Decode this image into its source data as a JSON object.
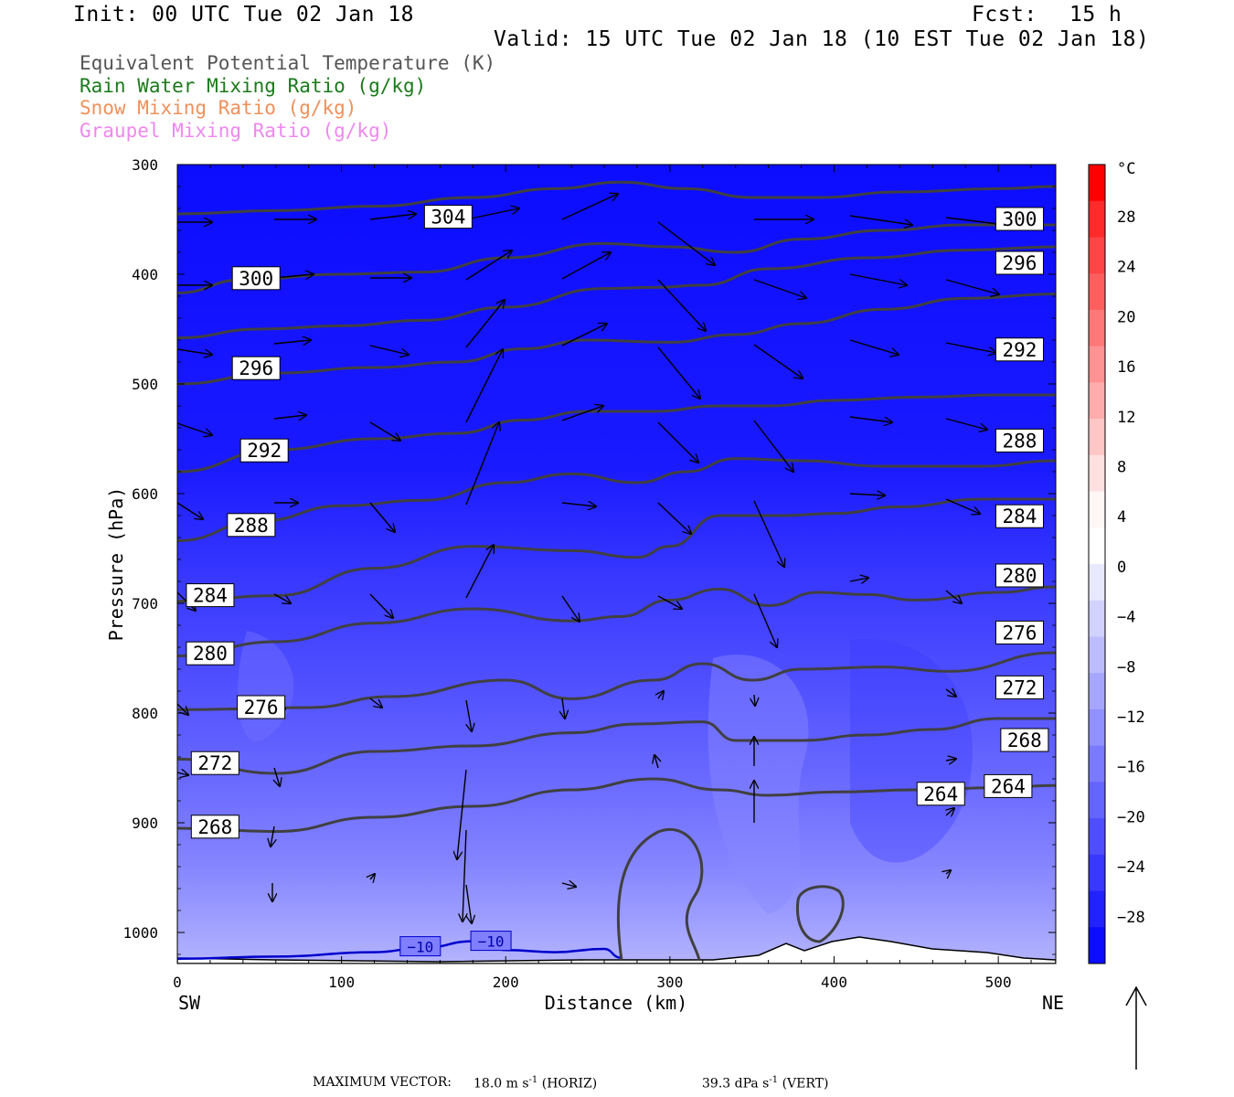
{
  "header": {
    "init": "Init: 00 UTC Tue 02 Jan 18",
    "fcst_label": "Fcst:",
    "fcst_value": "15 h",
    "valid": "Valid: 15 UTC Tue 02 Jan 18 (10 EST Tue 02 Jan 18)"
  },
  "legend": {
    "items": [
      {
        "label": "Equivalent Potential Temperature (K)",
        "color": "#555555"
      },
      {
        "label": "Rain Water Mixing Ratio (g/kg)",
        "color": "#1a7a1a"
      },
      {
        "label": "Snow Mixing Ratio (g/kg)",
        "color": "#f0905a"
      },
      {
        "label": "Graupel Mixing Ratio (g/kg)",
        "color": "#ee88ee"
      }
    ]
  },
  "footer": {
    "max_vector_label": "MAXIMUM VECTOR:",
    "horiz_value": "18.0",
    "horiz_unit": "m s",
    "horiz_tag": "(HORIZ)",
    "vert_value": "39.3",
    "vert_unit": "dPa s",
    "vert_tag": "(VERT)",
    "exponent": "-1"
  },
  "chart_data": {
    "type": "heatmap",
    "xlabel": "Distance (km)",
    "ylabel": "Pressure (hPa)",
    "xlim": [
      0,
      535
    ],
    "ylim": [
      1030,
      300
    ],
    "x_ticks": [
      0,
      100,
      200,
      300,
      400,
      500
    ],
    "y_ticks": [
      300,
      400,
      500,
      600,
      700,
      800,
      900,
      1000
    ],
    "x_end_labels": {
      "left": "SW",
      "right": "NE"
    },
    "colorbar": {
      "unit": "°C",
      "tick_labels": [
        28,
        24,
        20,
        16,
        12,
        8,
        4,
        0,
        -4,
        -8,
        -12,
        -16,
        -20,
        -24,
        -28
      ],
      "colors": [
        "#ff0000",
        "#ff2a2a",
        "#ff4444",
        "#ff5e5e",
        "#ff7878",
        "#ff9292",
        "#ffacac",
        "#ffc6c6",
        "#ffe0e0",
        "#fff6f6",
        "#ffffff",
        "#e8e8ff",
        "#d2d2ff",
        "#bcbcff",
        "#a6a6ff",
        "#9090ff",
        "#7a7aff",
        "#6464ff",
        "#4e4eff",
        "#3838ff",
        "#2222ff",
        "#0c0cff"
      ]
    },
    "theta_e_contours": [
      {
        "value": 304,
        "points": [
          [
            0,
            345
          ],
          [
            60,
            342
          ],
          [
            120,
            338
          ],
          [
            180,
            330
          ],
          [
            230,
            322
          ],
          [
            270,
            316
          ],
          [
            310,
            322
          ],
          [
            350,
            330
          ],
          [
            390,
            330
          ],
          [
            440,
            325
          ],
          [
            500,
            322
          ],
          [
            535,
            320
          ]
        ]
      },
      {
        "value": 300,
        "points": [
          [
            0,
            417
          ],
          [
            40,
            405
          ],
          [
            100,
            400
          ],
          [
            150,
            398
          ],
          [
            200,
            385
          ],
          [
            260,
            372
          ],
          [
            300,
            375
          ],
          [
            340,
            380
          ],
          [
            380,
            368
          ],
          [
            430,
            360
          ],
          [
            480,
            355
          ],
          [
            535,
            355
          ]
        ]
      },
      {
        "value": 296,
        "points": [
          [
            0,
            458
          ],
          [
            50,
            450
          ],
          [
            100,
            447
          ],
          [
            150,
            442
          ],
          [
            200,
            430
          ],
          [
            260,
            413
          ],
          [
            290,
            412
          ],
          [
            320,
            410
          ],
          [
            360,
            395
          ],
          [
            420,
            385
          ],
          [
            480,
            378
          ],
          [
            535,
            375
          ]
        ]
      },
      {
        "value": 292,
        "points": [
          [
            0,
            500
          ],
          [
            60,
            490
          ],
          [
            120,
            485
          ],
          [
            170,
            480
          ],
          [
            210,
            468
          ],
          [
            250,
            460
          ],
          [
            300,
            462
          ],
          [
            340,
            455
          ],
          [
            380,
            445
          ],
          [
            430,
            432
          ],
          [
            480,
            422
          ],
          [
            535,
            418
          ]
        ]
      },
      {
        "value": 288,
        "points": [
          [
            0,
            580
          ],
          [
            60,
            560
          ],
          [
            120,
            550
          ],
          [
            170,
            545
          ],
          [
            210,
            533
          ],
          [
            250,
            525
          ],
          [
            290,
            525
          ],
          [
            330,
            520
          ],
          [
            360,
            520
          ],
          [
            400,
            515
          ],
          [
            450,
            512
          ],
          [
            500,
            510
          ],
          [
            535,
            510
          ]
        ]
      },
      {
        "value": 284,
        "points": [
          [
            0,
            643
          ],
          [
            50,
            625
          ],
          [
            100,
            611
          ],
          [
            150,
            606
          ],
          [
            200,
            590
          ],
          [
            240,
            582
          ],
          [
            280,
            590
          ],
          [
            310,
            580
          ],
          [
            340,
            568
          ],
          [
            380,
            570
          ],
          [
            430,
            575
          ],
          [
            490,
            575
          ],
          [
            535,
            570
          ]
        ]
      },
      {
        "value": 280,
        "points": [
          [
            0,
            698
          ],
          [
            60,
            693
          ],
          [
            120,
            668
          ],
          [
            180,
            648
          ],
          [
            240,
            652
          ],
          [
            280,
            658
          ],
          [
            300,
            648
          ],
          [
            330,
            620
          ],
          [
            370,
            620
          ],
          [
            400,
            618
          ],
          [
            440,
            612
          ],
          [
            490,
            605
          ],
          [
            535,
            605
          ]
        ]
      },
      {
        "value": 276,
        "points": [
          [
            0,
            748
          ],
          [
            60,
            735
          ],
          [
            120,
            718
          ],
          [
            180,
            705
          ],
          [
            240,
            716
          ],
          [
            270,
            712
          ],
          [
            300,
            697
          ],
          [
            330,
            687
          ],
          [
            360,
            702
          ],
          [
            390,
            690
          ],
          [
            420,
            692
          ],
          [
            450,
            697
          ],
          [
            500,
            690
          ],
          [
            535,
            685
          ]
        ]
      },
      {
        "value": 272,
        "points": [
          [
            0,
            797
          ],
          [
            80,
            795
          ],
          [
            130,
            785
          ],
          [
            200,
            770
          ],
          [
            240,
            787
          ],
          [
            290,
            770
          ],
          [
            320,
            755
          ],
          [
            350,
            770
          ],
          [
            380,
            760
          ],
          [
            430,
            758
          ],
          [
            470,
            762
          ],
          [
            535,
            745
          ]
        ]
      },
      {
        "value": 268,
        "points": [
          [
            0,
            842
          ],
          [
            60,
            855
          ],
          [
            120,
            835
          ],
          [
            180,
            830
          ],
          [
            240,
            818
          ],
          [
            280,
            810
          ],
          [
            320,
            808
          ],
          [
            340,
            825
          ],
          [
            380,
            825
          ],
          [
            420,
            820
          ],
          [
            460,
            815
          ],
          [
            500,
            805
          ],
          [
            535,
            805
          ]
        ]
      },
      {
        "value": 264,
        "points": [
          [
            0,
            905
          ],
          [
            60,
            908
          ],
          [
            120,
            895
          ],
          [
            180,
            885
          ],
          [
            240,
            870
          ],
          [
            290,
            860
          ],
          [
            330,
            870
          ],
          [
            360,
            875
          ],
          [
            400,
            872
          ],
          [
            450,
            870
          ],
          [
            500,
            868
          ],
          [
            535,
            866
          ]
        ]
      }
    ],
    "contour_labels": [
      {
        "text": "304",
        "x": 165,
        "y": 348
      },
      {
        "text": "300",
        "x": 48,
        "y": 404
      },
      {
        "text": "296",
        "x": 48,
        "y": 486
      },
      {
        "text": "292",
        "x": 53,
        "y": 561
      },
      {
        "text": "288",
        "x": 45,
        "y": 629
      },
      {
        "text": "284",
        "x": 20,
        "y": 693
      },
      {
        "text": "280",
        "x": 20,
        "y": 746
      },
      {
        "text": "276",
        "x": 51,
        "y": 795
      },
      {
        "text": "272",
        "x": 23,
        "y": 846
      },
      {
        "text": "268",
        "x": 23,
        "y": 904
      },
      {
        "text": "300",
        "x": 513,
        "y": 350
      },
      {
        "text": "296",
        "x": 513,
        "y": 390
      },
      {
        "text": "292",
        "x": 513,
        "y": 469
      },
      {
        "text": "288",
        "x": 513,
        "y": 552
      },
      {
        "text": "284",
        "x": 513,
        "y": 621
      },
      {
        "text": "280",
        "x": 513,
        "y": 675
      },
      {
        "text": "276",
        "x": 513,
        "y": 727
      },
      {
        "text": "272",
        "x": 513,
        "y": 777
      },
      {
        "text": "268",
        "x": 516,
        "y": 825
      },
      {
        "text": "264",
        "x": 506,
        "y": 867
      },
      {
        "text": "264",
        "x": 465,
        "y": 874
      }
    ],
    "isotherm_minus10": {
      "value": -10,
      "label_text": "−10",
      "points": [
        [
          0,
          1024
        ],
        [
          60,
          1022
        ],
        [
          120,
          1018
        ],
        [
          150,
          1014
        ],
        [
          180,
          1008
        ],
        [
          200,
          1016
        ],
        [
          230,
          1018
        ],
        [
          260,
          1015
        ],
        [
          270,
          1023
        ]
      ],
      "labels": [
        {
          "x": 148,
          "y": 1013
        },
        {
          "x": 191,
          "y": 1008
        }
      ]
    }
  }
}
